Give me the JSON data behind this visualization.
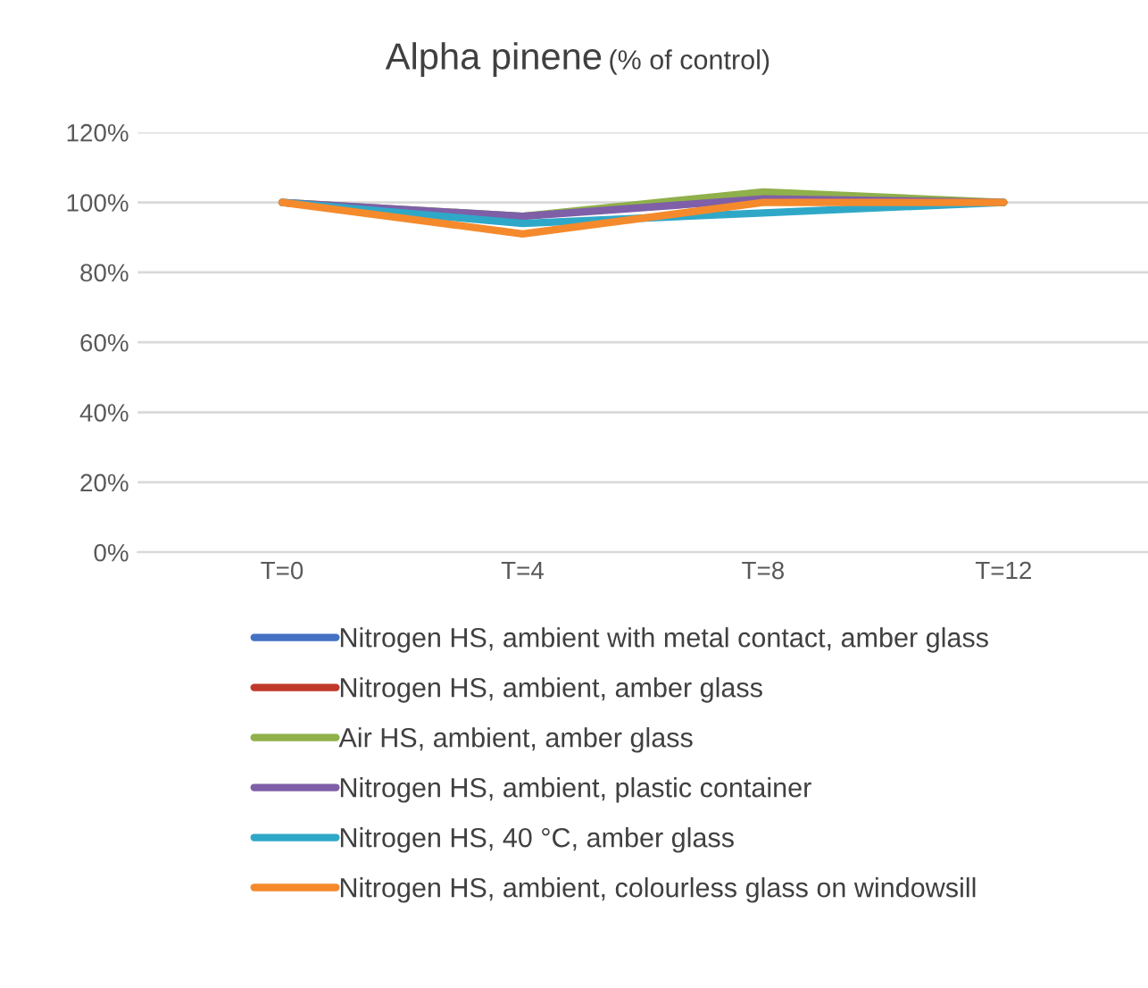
{
  "chart_data": {
    "type": "line",
    "title": "Alpha pinene",
    "subtitle": "(% of control)",
    "categories": [
      "T=0",
      "T=4",
      "T=8",
      "T=12"
    ],
    "series": [
      {
        "name": "Nitrogen HS, ambient with metal contact, amber glass",
        "color": "#4472c4",
        "values": [
          null,
          null,
          null,
          null
        ]
      },
      {
        "name": "Nitrogen HS, ambient, amber glass",
        "color": "#c0392b",
        "values": [
          null,
          null,
          null,
          null
        ]
      },
      {
        "name": "Air HS, ambient, amber glass",
        "color": "#8fb04a",
        "values": [
          100,
          96,
          103,
          100
        ]
      },
      {
        "name": "Nitrogen HS, ambient, plastic container",
        "color": "#7e5fa8",
        "values": [
          100,
          96,
          101,
          100
        ]
      },
      {
        "name": "Nitrogen HS, 40 °C, amber glass",
        "color": "#2fa8c8",
        "values": [
          100,
          94,
          97,
          100
        ]
      },
      {
        "name": "Nitrogen HS, ambient, colourless glass on windowsill",
        "color": "#f58a2c",
        "values": [
          100,
          91,
          100,
          100
        ]
      }
    ],
    "ylim": [
      0,
      120
    ],
    "yticks": [
      {
        "value": 0,
        "label": "0%"
      },
      {
        "value": 20,
        "label": "20%"
      },
      {
        "value": 40,
        "label": "40%"
      },
      {
        "value": 60,
        "label": "60%"
      },
      {
        "value": 80,
        "label": "80%"
      },
      {
        "value": 100,
        "label": "100%"
      },
      {
        "value": 120,
        "label": "120%"
      }
    ],
    "grid": "y",
    "legend": "bottom",
    "marker": "none",
    "line_style": "solid"
  }
}
